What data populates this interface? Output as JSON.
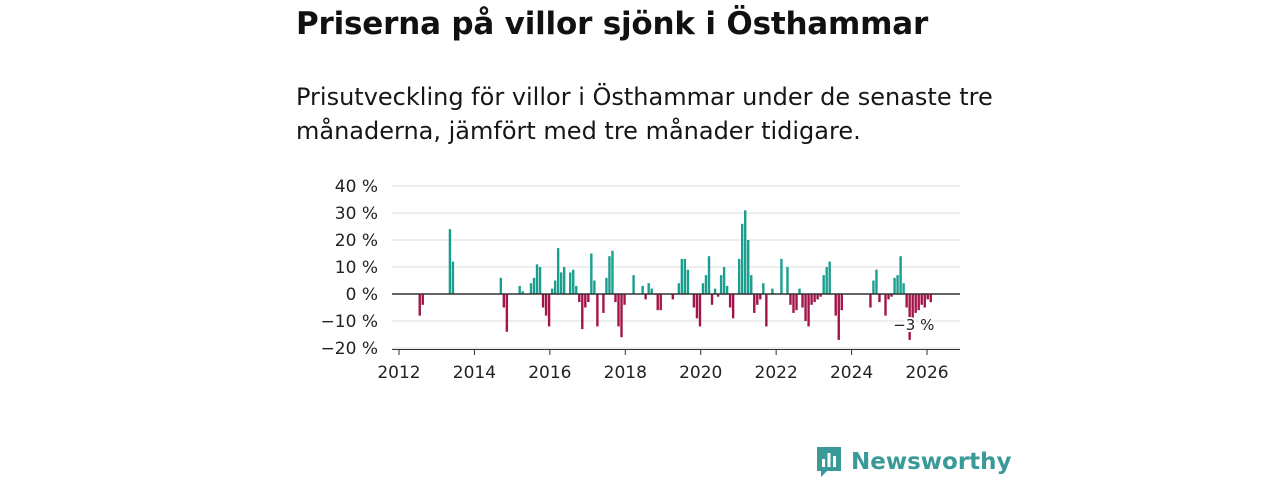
{
  "title": "Priserna på villor sjönk i Östhammar",
  "subtitle": "Prisutveckling för villor i Östhammar under de senaste tre månaderna, jämfört med tre månader tidigare.",
  "logo": {
    "text": "Newsworthy",
    "icon": "newsworthy-bar-chart-icon"
  },
  "colors": {
    "positive": "#1a9e8f",
    "negative": "#a3154a",
    "grid": "#dddddd",
    "zero": "#333333",
    "brand": "#3a9a98"
  },
  "chart_data": {
    "type": "bar",
    "title": "Priserna på villor sjönk i Östhammar",
    "xlabel": "",
    "ylabel": "",
    "ylim": [
      -20,
      40
    ],
    "xlim": [
      2012,
      2027
    ],
    "y_ticks": [
      40,
      30,
      20,
      10,
      0,
      -10,
      -20
    ],
    "y_tick_labels": [
      "40 %",
      "30 %",
      "20 %",
      "10 %",
      "0 %",
      "−10 %",
      "−20 %"
    ],
    "x_ticks": [
      2012,
      2014,
      2016,
      2018,
      2020,
      2022,
      2024,
      2026
    ],
    "x_tick_labels": [
      "2012",
      "2014",
      "2016",
      "2018",
      "2020",
      "2022",
      "2024",
      "2026"
    ],
    "last_value_label": "−3 %",
    "x": [
      2012.55,
      2012.63,
      2013.35,
      2013.43,
      2014.7,
      2014.78,
      2014.86,
      2015.2,
      2015.28,
      2015.5,
      2015.58,
      2015.66,
      2015.74,
      2015.82,
      2015.9,
      2015.98,
      2016.06,
      2016.14,
      2016.22,
      2016.3,
      2016.38,
      2016.46,
      2016.54,
      2016.62,
      2016.7,
      2016.78,
      2016.86,
      2016.94,
      2017.02,
      2017.1,
      2017.18,
      2017.26,
      2017.42,
      2017.5,
      2017.58,
      2017.66,
      2017.74,
      2017.82,
      2017.9,
      2017.98,
      2018.22,
      2018.46,
      2018.54,
      2018.62,
      2018.7,
      2018.86,
      2018.94,
      2019.02,
      2019.26,
      2019.42,
      2019.5,
      2019.58,
      2019.66,
      2019.82,
      2019.9,
      2019.98,
      2020.06,
      2020.14,
      2020.22,
      2020.3,
      2020.38,
      2020.46,
      2020.54,
      2020.62,
      2020.7,
      2020.78,
      2020.86,
      2021.02,
      2021.1,
      2021.18,
      2021.26,
      2021.34,
      2021.42,
      2021.5,
      2021.58,
      2021.66,
      2021.74,
      2021.82,
      2021.9,
      2022.14,
      2022.3,
      2022.38,
      2022.46,
      2022.54,
      2022.62,
      2022.7,
      2022.78,
      2022.86,
      2022.94,
      2023.02,
      2023.1,
      2023.18,
      2023.26,
      2023.34,
      2023.42,
      2023.5,
      2023.58,
      2023.66,
      2023.74,
      2023.82,
      2023.9,
      2024.5,
      2024.58,
      2024.66,
      2024.74,
      2024.9,
      2024.98,
      2025.06,
      2025.14,
      2025.22,
      2025.3,
      2025.38,
      2025.46,
      2025.54,
      2025.62,
      2025.7,
      2025.78,
      2025.86,
      2025.94,
      2026.02,
      2026.1
    ],
    "values": [
      -8,
      -4,
      24,
      12,
      6,
      -5,
      -14,
      3,
      1,
      4,
      6,
      11,
      10,
      -5,
      -8,
      -12,
      2,
      5,
      17,
      8,
      10,
      0,
      8,
      9,
      3,
      -3,
      -13,
      -5,
      -3,
      15,
      5,
      -12,
      -7,
      6,
      14,
      16,
      -3,
      -12,
      -16,
      -4,
      7,
      3,
      -2,
      4,
      2,
      -6,
      -6,
      0,
      -2,
      4,
      13,
      13,
      9,
      -5,
      -9,
      -12,
      4,
      7,
      14,
      -4,
      2,
      -1,
      7,
      10,
      3,
      -5,
      -9,
      13,
      26,
      31,
      20,
      7,
      -7,
      -4,
      -2,
      4,
      -12,
      0,
      2,
      13,
      10,
      -4,
      -7,
      -6,
      2,
      -5,
      -10,
      -12,
      -4,
      -3,
      -2,
      -1,
      7,
      10,
      12,
      0,
      -8,
      -17,
      -6,
      0,
      0,
      -5,
      5,
      9,
      -3,
      -8,
      -2,
      -1,
      6,
      7,
      14,
      4,
      -5,
      -17,
      -10,
      -7,
      -6,
      -4,
      -5,
      -2,
      -3
    ]
  }
}
